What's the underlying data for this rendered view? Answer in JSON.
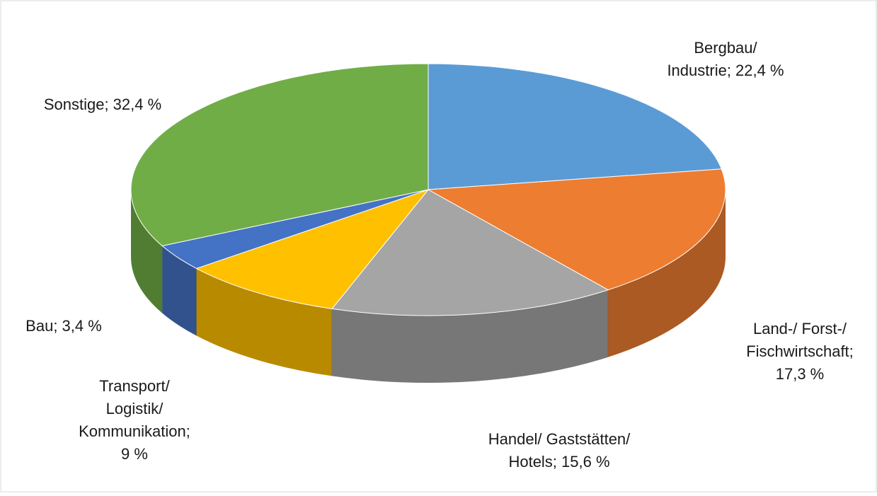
{
  "chart_data": {
    "type": "pie3d",
    "values": [
      22.4,
      17.3,
      15.6,
      9,
      3.4,
      32.4
    ],
    "value_labels": [
      [
        "Bergbau/",
        "Industrie; 22,4 %"
      ],
      [
        "Land-/ Forst-/",
        "Fischwirtschaft;",
        "17,3 %"
      ],
      [
        "Handel/ Gaststätten/",
        "Hotels; 15,6 %"
      ],
      [
        "Transport/",
        "Logistik/",
        "Kommunikation;",
        "9 %"
      ],
      [
        "Bau; 3,4 %"
      ],
      [
        "Sonstige; 32,4 %"
      ]
    ],
    "colors": [
      "#5b9bd5",
      "#ed7d31",
      "#a5a5a5",
      "#ffc000",
      "#4472c4",
      "#70ad47"
    ]
  }
}
